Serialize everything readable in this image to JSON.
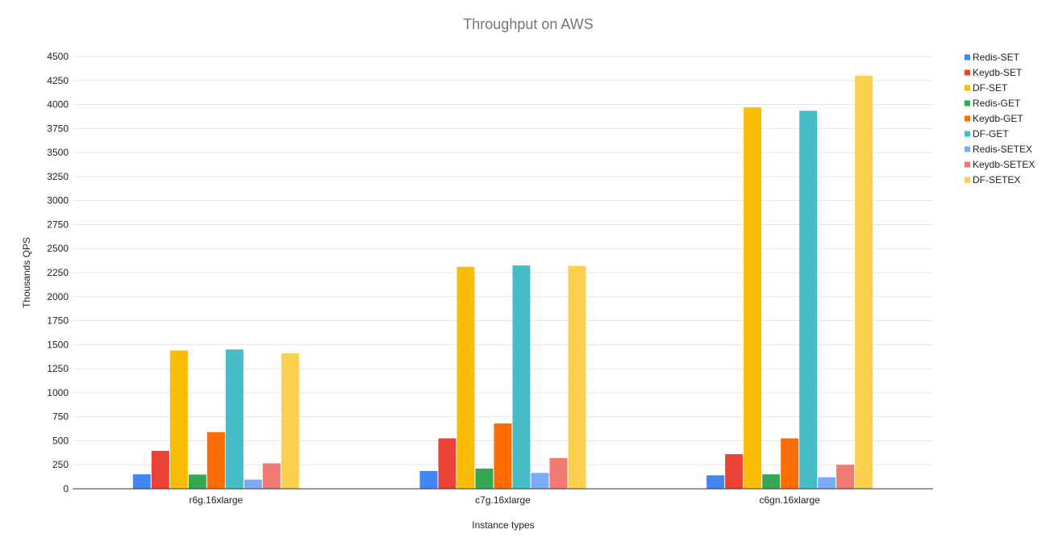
{
  "chart_data": {
    "type": "bar",
    "title": "Throughput on AWS",
    "xlabel": "Instance types",
    "ylabel": "Thousands QPS",
    "categories": [
      "r6g.16xlarge",
      "c7g.16xlarge",
      "c6gn.16xlarge"
    ],
    "ylim": [
      0,
      4500
    ],
    "yticks": [
      0,
      250,
      500,
      750,
      1000,
      1250,
      1500,
      1750,
      2000,
      2250,
      2500,
      2750,
      3000,
      3250,
      3500,
      3750,
      4000,
      4250,
      4500
    ],
    "grid": true,
    "legend_position": "right",
    "series": [
      {
        "name": "Redis-SET",
        "color": "#4285F4",
        "values": [
          150,
          185,
          140
        ]
      },
      {
        "name": "Keydb-SET",
        "color": "#EA4335",
        "values": [
          395,
          525,
          360
        ]
      },
      {
        "name": "DF-SET",
        "color": "#FBBC04",
        "values": [
          1440,
          2310,
          3970
        ]
      },
      {
        "name": "Redis-GET",
        "color": "#34A853",
        "values": [
          148,
          210,
          150
        ]
      },
      {
        "name": "Keydb-GET",
        "color": "#FF6D01",
        "values": [
          590,
          680,
          525
        ]
      },
      {
        "name": "DF-GET",
        "color": "#46BDC6",
        "values": [
          1450,
          2325,
          3935
        ]
      },
      {
        "name": "Redis-SETEX",
        "color": "#7BAAF7",
        "values": [
          95,
          165,
          120
        ]
      },
      {
        "name": "Keydb-SETEX",
        "color": "#F07B72",
        "values": [
          265,
          320,
          250
        ]
      },
      {
        "name": "DF-SETEX",
        "color": "#FCD04F",
        "values": [
          1410,
          2320,
          4300
        ]
      }
    ]
  }
}
